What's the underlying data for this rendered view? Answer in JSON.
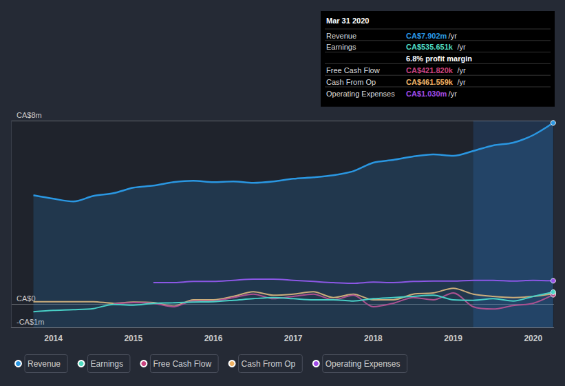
{
  "chart_data": {
    "type": "line",
    "x": [
      2013.75,
      2014.0,
      2014.25,
      2014.5,
      2014.75,
      2015.0,
      2015.25,
      2015.5,
      2015.75,
      2016.0,
      2016.25,
      2016.5,
      2016.75,
      2017.0,
      2017.25,
      2017.5,
      2017.75,
      2018.0,
      2018.25,
      2018.5,
      2018.75,
      2019.0,
      2019.25,
      2019.5,
      2019.75,
      2020.0,
      2020.25
    ],
    "series": [
      {
        "name": "Revenue",
        "type": "area",
        "color": "#2a97e2",
        "values": [
          4.75,
          4.6,
          4.48,
          4.72,
          4.84,
          5.08,
          5.17,
          5.32,
          5.38,
          5.32,
          5.35,
          5.29,
          5.35,
          5.47,
          5.53,
          5.62,
          5.8,
          6.17,
          6.29,
          6.44,
          6.53,
          6.47,
          6.68,
          6.92,
          7.04,
          7.37,
          7.902
        ]
      },
      {
        "name": "Earnings",
        "type": "line",
        "color": "#4fdcc0",
        "values": [
          -0.32,
          -0.26,
          -0.23,
          -0.18,
          0.0,
          -0.03,
          0.05,
          0.07,
          0.1,
          0.12,
          0.18,
          0.25,
          0.3,
          0.25,
          0.2,
          0.2,
          0.15,
          0.25,
          0.3,
          0.35,
          0.4,
          0.2,
          0.18,
          0.25,
          0.15,
          0.35,
          0.536
        ]
      },
      {
        "name": "Free Cash Flow",
        "type": "line",
        "color": "#c9437f",
        "values": [
          null,
          null,
          null,
          null,
          0.03,
          0.08,
          0.05,
          -0.1,
          0.15,
          0.15,
          0.3,
          0.45,
          0.25,
          0.35,
          0.45,
          0.2,
          0.4,
          -0.1,
          0.05,
          0.3,
          0.2,
          0.5,
          -0.1,
          -0.2,
          -0.05,
          0.05,
          0.422
        ]
      },
      {
        "name": "Cash From Op",
        "type": "line",
        "color": "#f0b264",
        "values": [
          0.12,
          0.12,
          0.12,
          0.12,
          0.05,
          0.1,
          0.08,
          -0.08,
          0.2,
          0.2,
          0.35,
          0.55,
          0.4,
          0.45,
          0.55,
          0.3,
          0.45,
          0.2,
          0.2,
          0.45,
          0.5,
          0.7,
          0.45,
          0.35,
          0.3,
          0.35,
          0.462
        ]
      },
      {
        "name": "Operating Expenses",
        "type": "line",
        "color": "#a04ae6",
        "values": [
          null,
          null,
          null,
          null,
          null,
          null,
          0.95,
          0.95,
          1.0,
          1.0,
          1.05,
          1.1,
          1.1,
          1.05,
          1.0,
          0.95,
          0.92,
          0.97,
          0.95,
          1.0,
          1.02,
          1.02,
          1.05,
          1.05,
          1.02,
          1.05,
          1.03
        ]
      }
    ],
    "xlim": [
      2013.47,
      2020.26
    ],
    "xticks": [
      2014,
      2015,
      2016,
      2017,
      2018,
      2019,
      2020
    ],
    "ylim": [
      -1,
      8
    ],
    "yticks": [
      {
        "value": -1,
        "label": "-CA$1m"
      },
      {
        "value": 0,
        "label": "CA$0"
      },
      {
        "value": 8,
        "label": "CA$8m"
      }
    ],
    "shaded_x": [
      2019.25,
      2020.25
    ],
    "grid": true,
    "legend": "bottom",
    "tooltip": {
      "date": "Mar 31 2020",
      "rows": [
        {
          "label": "Revenue",
          "value": "CA$7.902m",
          "unit": "/yr"
        },
        {
          "label": "Earnings",
          "value": "CA$535.651k",
          "unit": "/yr"
        },
        {
          "note": "6.8% profit margin"
        },
        {
          "label": "Free Cash Flow",
          "value": "CA$421.820k",
          "unit": "/yr"
        },
        {
          "label": "Cash From Op",
          "value": "CA$461.559k",
          "unit": "/yr"
        },
        {
          "label": "Operating Expenses",
          "value": "CA$1.030m",
          "unit": "/yr"
        }
      ]
    }
  }
}
